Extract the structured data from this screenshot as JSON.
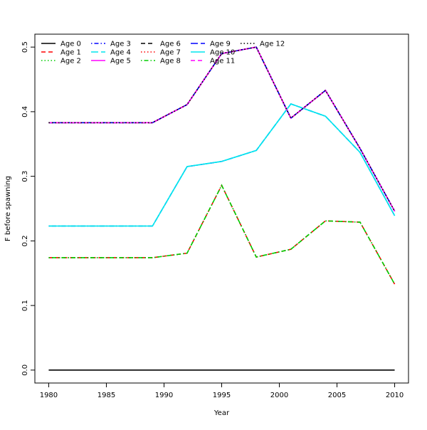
{
  "chart_data": {
    "type": "line",
    "title": "",
    "xlabel": "Year",
    "ylabel": "F before spawning",
    "xlim": [
      1978.8,
      2011.2
    ],
    "ylim": [
      -0.02,
      0.52
    ],
    "x_ticks": [
      1980,
      1985,
      1990,
      1995,
      2000,
      2005,
      2010
    ],
    "y_ticks": [
      0.0,
      0.1,
      0.2,
      0.3,
      0.4,
      0.5
    ],
    "x_tick_labels": [
      "1980",
      "1985",
      "1990",
      "1995",
      "2000",
      "2005",
      "2010"
    ],
    "y_tick_labels": [
      "0.0",
      "0.1",
      "0.2",
      "0.3",
      "0.4",
      "0.5"
    ],
    "grid": false,
    "legend_position": "top-left, horizontal columns",
    "x": [
      1980,
      1989,
      1992,
      1995,
      1998,
      2001,
      2004,
      2007,
      2010
    ],
    "series": [
      {
        "name": "Age 0",
        "color": "#000000",
        "dash": "solid",
        "values": [
          0,
          0,
          0,
          0,
          0,
          0,
          0,
          0,
          0
        ]
      },
      {
        "name": "Age 1",
        "color": "#ff0000",
        "dash": "dashed",
        "values": [
          0.174,
          0.174,
          0.181,
          0.286,
          0.175,
          0.187,
          0.231,
          0.229,
          0.133
        ]
      },
      {
        "name": "Age 2",
        "color": "#00cd00",
        "dash": "dotted",
        "values": [
          0.174,
          0.174,
          0.181,
          0.286,
          0.175,
          0.187,
          0.231,
          0.229,
          0.133
        ]
      },
      {
        "name": "Age 3",
        "color": "#0000ff",
        "dash": "dotdash",
        "values": [
          0.223,
          0.223,
          0.315,
          0.323,
          0.34,
          0.412,
          0.393,
          0.337,
          0.239
        ]
      },
      {
        "name": "Age 4",
        "color": "#00e5ee",
        "dash": "longdash",
        "values": [
          0.223,
          0.223,
          0.315,
          0.323,
          0.34,
          0.412,
          0.393,
          0.337,
          0.239
        ]
      },
      {
        "name": "Age 5",
        "color": "#ff00ff",
        "dash": "solid",
        "values": [
          0.383,
          0.383,
          0.411,
          0.49,
          0.5,
          0.39,
          0.433,
          0.343,
          0.246
        ]
      },
      {
        "name": "Age 6",
        "color": "#000000",
        "dash": "dashed",
        "values": [
          0.383,
          0.383,
          0.411,
          0.49,
          0.5,
          0.39,
          0.433,
          0.343,
          0.246
        ]
      },
      {
        "name": "Age 7",
        "color": "#ff0000",
        "dash": "dotted",
        "values": [
          0.383,
          0.383,
          0.411,
          0.49,
          0.5,
          0.39,
          0.433,
          0.343,
          0.246
        ]
      },
      {
        "name": "Age 8",
        "color": "#00cd00",
        "dash": "dotdash",
        "values": [
          0.174,
          0.174,
          0.181,
          0.286,
          0.175,
          0.187,
          0.231,
          0.229,
          0.133
        ]
      },
      {
        "name": "Age 9",
        "color": "#0000ff",
        "dash": "longdash",
        "values": [
          0.383,
          0.383,
          0.411,
          0.49,
          0.5,
          0.39,
          0.433,
          0.343,
          0.246
        ]
      },
      {
        "name": "Age 10",
        "color": "#00e5ee",
        "dash": "solid",
        "values": [
          0.223,
          0.223,
          0.315,
          0.323,
          0.34,
          0.412,
          0.393,
          0.337,
          0.239
        ]
      },
      {
        "name": "Age 11",
        "color": "#ff00ff",
        "dash": "dashed",
        "values": [
          0.383,
          0.383,
          0.411,
          0.49,
          0.5,
          0.39,
          0.433,
          0.343,
          0.246
        ]
      },
      {
        "name": "Age 12",
        "color": "#000000",
        "dash": "dotted",
        "values": [
          0.383,
          0.383,
          0.411,
          0.49,
          0.5,
          0.39,
          0.433,
          0.343,
          0.246
        ]
      }
    ]
  }
}
